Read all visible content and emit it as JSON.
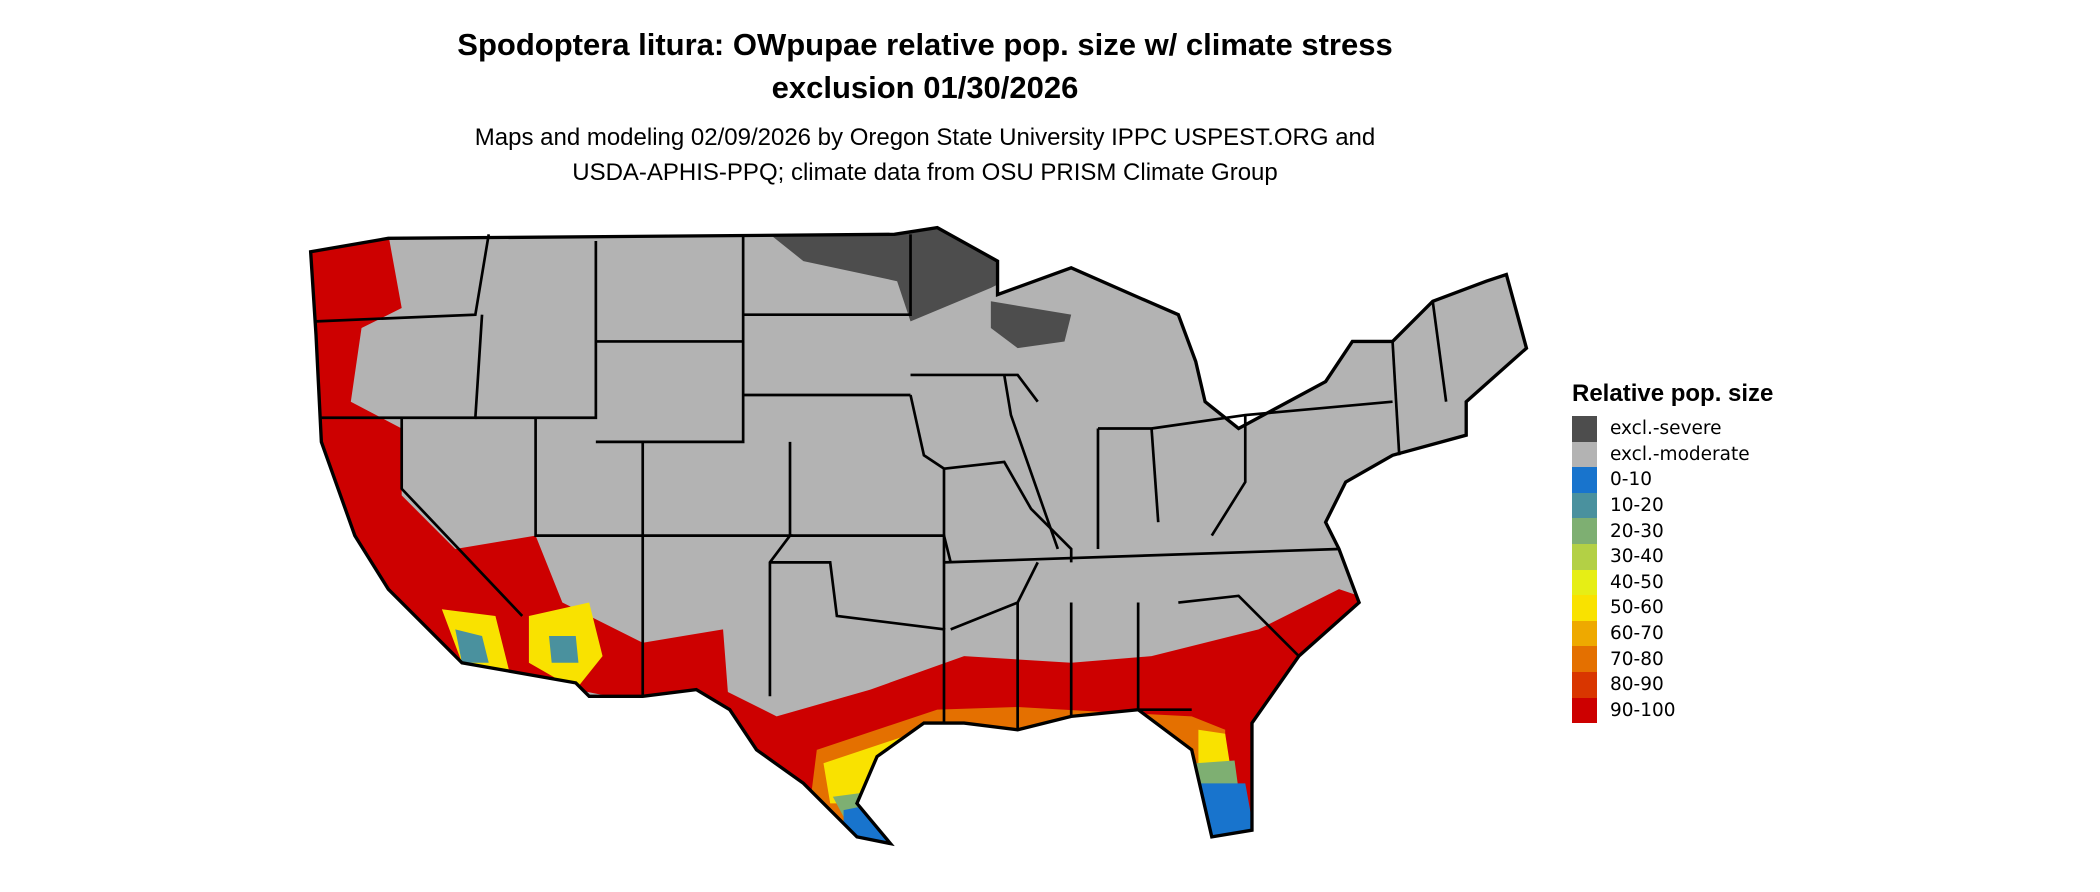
{
  "title_lines": [
    "Spodoptera litura: OWpupae relative pop. size w/ climate stress",
    "exclusion 01/30/2026"
  ],
  "subtitle_lines": [
    "Maps and modeling 02/09/2026 by Oregon State University IPPC USPEST.ORG and",
    "USDA-APHIS-PPQ; climate data from OSU PRISM Climate Group"
  ],
  "legend": {
    "title": "Relative pop. size",
    "position": "right",
    "items": [
      {
        "label": "excl.-severe",
        "color": "#4d4d4d"
      },
      {
        "label": "excl.-moderate",
        "color": "#b3b3b3"
      },
      {
        "label": "0-10",
        "color": "#1874cd"
      },
      {
        "label": "10-20",
        "color": "#4a919e"
      },
      {
        "label": "20-30",
        "color": "#7eaf72"
      },
      {
        "label": "30-40",
        "color": "#b3d045"
      },
      {
        "label": "40-50",
        "color": "#e6ee15"
      },
      {
        "label": "50-60",
        "color": "#f9e200"
      },
      {
        "label": "60-70",
        "color": "#eea900"
      },
      {
        "label": "70-80",
        "color": "#e47000"
      },
      {
        "label": "80-90",
        "color": "#d93600"
      },
      {
        "label": "90-100",
        "color": "#cd0000"
      }
    ]
  },
  "map": {
    "region": "Contiguous United States",
    "border_color": "#000000"
  }
}
